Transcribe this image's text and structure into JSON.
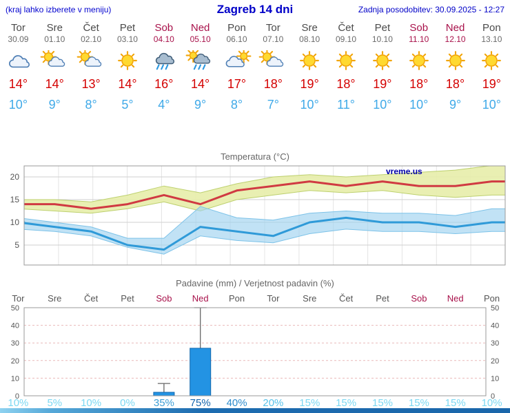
{
  "header": {
    "left_note": "(kraj lahko izberete v meniju)",
    "title": "Zagreb 14 dni",
    "last_update": "Zadnja posodobitev: 30.09.2025 - 12:27"
  },
  "days": [
    {
      "name": "Tor",
      "date": "30.09",
      "weekend": false,
      "icon": "cloud-icon",
      "high": "14°",
      "low": "10°"
    },
    {
      "name": "Sre",
      "date": "01.10",
      "weekend": false,
      "icon": "sun-cloud-icon",
      "high": "14°",
      "low": "9°"
    },
    {
      "name": "Čet",
      "date": "02.10",
      "weekend": false,
      "icon": "sun-cloud-icon",
      "high": "13°",
      "low": "8°"
    },
    {
      "name": "Pet",
      "date": "03.10",
      "weekend": false,
      "icon": "sun-icon",
      "high": "14°",
      "low": "5°"
    },
    {
      "name": "Sob",
      "date": "04.10",
      "weekend": true,
      "icon": "rain-icon",
      "high": "16°",
      "low": "4°"
    },
    {
      "name": "Ned",
      "date": "05.10",
      "weekend": true,
      "icon": "sun-rain-icon",
      "high": "14°",
      "low": "9°"
    },
    {
      "name": "Pon",
      "date": "06.10",
      "weekend": false,
      "icon": "cloud-sun-icon",
      "high": "17°",
      "low": "8°"
    },
    {
      "name": "Tor",
      "date": "07.10",
      "weekend": false,
      "icon": "sun-cloud-icon",
      "high": "18°",
      "low": "7°"
    },
    {
      "name": "Sre",
      "date": "08.10",
      "weekend": false,
      "icon": "sun-icon",
      "high": "19°",
      "low": "10°"
    },
    {
      "name": "Čet",
      "date": "09.10",
      "weekend": false,
      "icon": "sun-icon",
      "high": "18°",
      "low": "11°"
    },
    {
      "name": "Pet",
      "date": "10.10",
      "weekend": false,
      "icon": "sun-icon",
      "high": "19°",
      "low": "10°"
    },
    {
      "name": "Sob",
      "date": "11.10",
      "weekend": true,
      "icon": "sun-icon",
      "high": "18°",
      "low": "10°"
    },
    {
      "name": "Ned",
      "date": "12.10",
      "weekend": true,
      "icon": "sun-icon",
      "high": "18°",
      "low": "9°"
    },
    {
      "name": "Pon",
      "date": "13.10",
      "weekend": false,
      "icon": "sun-icon",
      "high": "19°",
      "low": "10°"
    }
  ],
  "chart_data": [
    {
      "type": "line",
      "title": "Temperatura (°C)",
      "watermark": "vreme.us",
      "x_categories": [
        "Tor",
        "Sre",
        "Čet",
        "Pet",
        "Sob",
        "Ned",
        "Pon",
        "Tor",
        "Sre",
        "Čet",
        "Pet",
        "Sob",
        "Ned",
        "Pon"
      ],
      "yticks": [
        5,
        10,
        15,
        20
      ],
      "ylim": [
        0,
        23
      ],
      "grid": true,
      "legend": "none",
      "series": [
        {
          "name": "max_temp",
          "color": "#d03a42",
          "values": [
            14,
            14,
            13,
            14,
            16,
            14,
            17,
            18,
            19,
            18,
            19,
            18,
            18,
            19
          ]
        },
        {
          "name": "max_band_upper",
          "values": [
            15,
            15,
            14.5,
            16,
            18,
            16.5,
            18.5,
            20,
            20.5,
            20,
            20.5,
            21,
            21.5,
            22.5
          ]
        },
        {
          "name": "max_band_lower",
          "values": [
            13,
            12.5,
            12,
            13,
            14.5,
            12.5,
            15,
            16,
            17,
            16.5,
            17,
            16,
            15.5,
            16
          ]
        },
        {
          "name": "min_temp",
          "color": "#2f9ad8",
          "values": [
            10,
            9,
            8,
            5,
            4,
            9,
            8,
            7,
            10,
            11,
            10,
            10,
            9,
            10
          ]
        },
        {
          "name": "min_band_upper",
          "values": [
            11,
            10,
            9,
            6.5,
            6.5,
            13.5,
            11,
            10.5,
            12,
            12.5,
            12,
            12,
            11.5,
            13
          ]
        },
        {
          "name": "min_band_lower",
          "values": [
            8.5,
            8,
            7,
            4.5,
            3,
            7,
            6,
            5.5,
            7.5,
            8.5,
            8,
            8,
            7.5,
            8
          ]
        }
      ]
    },
    {
      "type": "bar",
      "title": "Padavine (mm) / Verjetnost padavin (%)",
      "categories": [
        "Tor",
        "Sre",
        "Čet",
        "Pet",
        "Sob",
        "Ned",
        "Pon",
        "Tor",
        "Sre",
        "Čet",
        "Pet",
        "Sob",
        "Ned",
        "Pon"
      ],
      "weekend": [
        false,
        false,
        false,
        false,
        true,
        true,
        false,
        false,
        false,
        false,
        false,
        true,
        true,
        false
      ],
      "yticks": [
        0,
        10,
        20,
        30,
        40,
        50
      ],
      "ylim": [
        0,
        50
      ],
      "precip_mm": [
        0,
        0,
        0,
        0,
        2,
        27,
        0,
        0,
        0,
        0,
        0,
        0,
        0,
        0
      ],
      "precip_max_mm": [
        0,
        0,
        0,
        0,
        7,
        50,
        0,
        0,
        0,
        0,
        0,
        0,
        0,
        0
      ],
      "probability_labels": [
        "10%",
        "5%",
        "10%",
        "0%",
        "35%",
        "75%",
        "40%",
        "20%",
        "15%",
        "15%",
        "15%",
        "15%",
        "15%",
        "10%"
      ],
      "probability_pct": [
        10,
        5,
        10,
        0,
        35,
        75,
        40,
        20,
        15,
        15,
        15,
        15,
        15,
        10
      ]
    }
  ]
}
